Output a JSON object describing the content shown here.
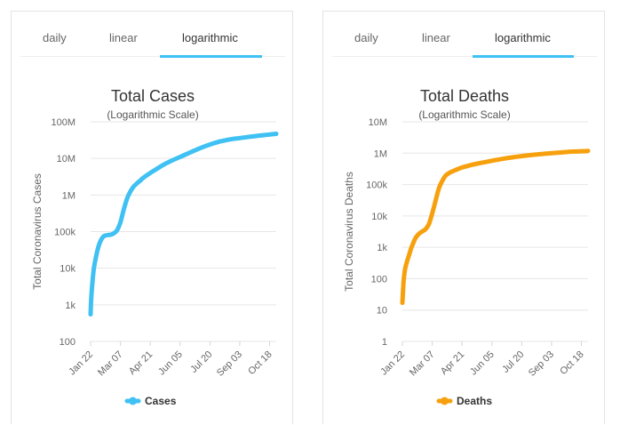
{
  "panels": [
    {
      "tabs": [
        "daily",
        "linear",
        "logarithmic"
      ],
      "active_tab": "logarithmic"
    },
    {
      "tabs": [
        "daily",
        "linear",
        "logarithmic"
      ],
      "active_tab": "logarithmic"
    }
  ],
  "chart_data": [
    {
      "type": "line",
      "title": "Total Cases",
      "subtitle": "(Logarithmic Scale)",
      "ylabel": "Total Coronavirus Cases",
      "yscale": "log",
      "ylim": [
        100,
        100000000
      ],
      "yticks": [
        100,
        1000,
        10000,
        100000,
        1000000,
        10000000,
        100000000
      ],
      "ytick_labels": [
        "100",
        "1k",
        "10k",
        "100k",
        "1M",
        "10M",
        "100M"
      ],
      "xtick_labels": [
        "Jan 22",
        "Mar 07",
        "Apr 21",
        "Jun 05",
        "Jul 20",
        "Sep 03",
        "Oct 18"
      ],
      "xtick_days": [
        0,
        45,
        90,
        135,
        180,
        225,
        270
      ],
      "x_range_days": [
        0,
        280
      ],
      "legend": "Cases",
      "legend_position": "bottom-center",
      "color": "#3fc1f3",
      "series": [
        {
          "name": "Cases",
          "x_days": [
            0,
            1,
            3,
            5,
            8,
            12,
            16,
            20,
            25,
            30,
            35,
            40,
            45,
            50,
            55,
            60,
            65,
            70,
            75,
            80,
            90,
            100,
            110,
            120,
            135,
            150,
            165,
            180,
            195,
            210,
            225,
            240,
            255,
            270,
            280
          ],
          "values": [
            550,
            1500,
            4500,
            10000,
            20000,
            40000,
            60000,
            75000,
            80000,
            82000,
            90000,
            110000,
            180000,
            400000,
            800000,
            1250000,
            1700000,
            2100000,
            2500000,
            3000000,
            4000000,
            5200000,
            6700000,
            8300000,
            11000000,
            14500000,
            19000000,
            24000000,
            29000000,
            33000000,
            36000000,
            39000000,
            42000000,
            45000000,
            47000000
          ]
        }
      ]
    },
    {
      "type": "line",
      "title": "Total Deaths",
      "subtitle": "(Logarithmic Scale)",
      "ylabel": "Total Coronavirus Deaths",
      "yscale": "log",
      "ylim": [
        1,
        10000000
      ],
      "yticks": [
        1,
        10,
        100,
        1000,
        10000,
        100000,
        1000000,
        10000000
      ],
      "ytick_labels": [
        "1",
        "10",
        "100",
        "1k",
        "10k",
        "100k",
        "1M",
        "10M"
      ],
      "xtick_labels": [
        "Jan 22",
        "Mar 07",
        "Apr 21",
        "Jun 05",
        "Jul 20",
        "Sep 03",
        "Oct 18"
      ],
      "xtick_days": [
        0,
        45,
        90,
        135,
        180,
        225,
        270
      ],
      "x_range_days": [
        0,
        280
      ],
      "legend": "Deaths",
      "legend_position": "bottom-center",
      "color": "#f7a00e",
      "series": [
        {
          "name": "Deaths",
          "x_days": [
            0,
            1,
            2,
            4,
            7,
            10,
            13,
            16,
            20,
            25,
            30,
            35,
            40,
            45,
            50,
            55,
            60,
            65,
            70,
            80,
            90,
            100,
            110,
            125,
            140,
            155,
            170,
            185,
            200,
            215,
            230,
            245,
            260,
            280
          ],
          "values": [
            17,
            40,
            90,
            200,
            350,
            560,
            900,
            1300,
            2000,
            2700,
            3200,
            3800,
            5500,
            12000,
            30000,
            75000,
            130000,
            190000,
            230000,
            290000,
            350000,
            400000,
            450000,
            520000,
            600000,
            680000,
            760000,
            830000,
            900000,
            960000,
            1020000,
            1080000,
            1130000,
            1180000
          ]
        }
      ]
    }
  ]
}
